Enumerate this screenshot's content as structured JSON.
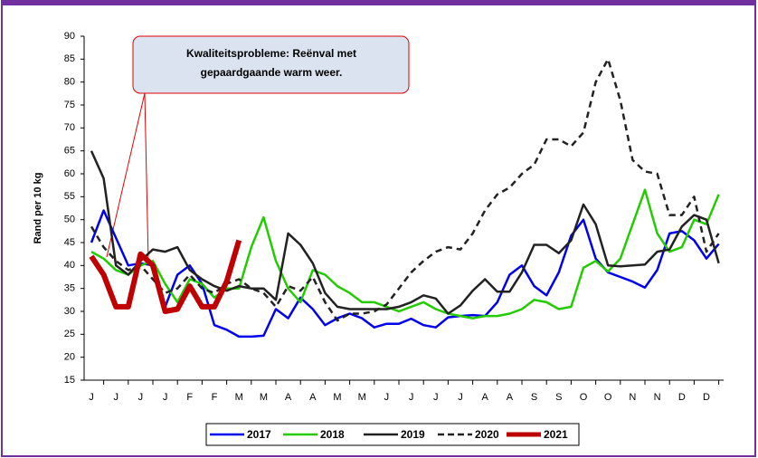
{
  "chart_data": {
    "type": "line",
    "ylabel": "Rand per 10 kg",
    "annotation": [
      "Kwaliteitsprobleme: Reënval met",
      "gepaardgaande warm weer."
    ],
    "categories": [
      "J",
      null,
      "J",
      null,
      "J",
      null,
      "J",
      null,
      "F",
      null,
      "F",
      null,
      "M",
      null,
      "M",
      null,
      "A",
      null,
      "A",
      null,
      "M",
      null,
      "M",
      null,
      "J",
      null,
      "J",
      null,
      "J",
      null,
      "J",
      null,
      "A",
      null,
      "A",
      null,
      "S",
      null,
      "S",
      null,
      "O",
      null,
      "O",
      null,
      "N",
      null,
      "N",
      null,
      "D",
      null,
      "D",
      null
    ],
    "ylim": [
      15,
      90
    ],
    "yticks": [
      15,
      20,
      25,
      30,
      35,
      40,
      45,
      50,
      55,
      60,
      65,
      70,
      75,
      80,
      85,
      90
    ],
    "grid": false,
    "legend": "bottom",
    "series": [
      {
        "name": "2017",
        "color": "#0000ee",
        "line_width": 2.5,
        "dashed": false,
        "values": [
          45,
          52,
          46,
          40,
          40.5,
          40,
          31,
          38,
          40,
          36,
          27,
          26,
          24.5,
          24.5,
          24.7,
          30.5,
          28.5,
          33,
          30.5,
          27,
          28.5,
          29.5,
          28.5,
          26.5,
          27.3,
          27.3,
          28.4,
          27,
          26.5,
          28.7,
          29,
          29.2,
          29,
          32,
          38,
          40,
          35.5,
          33.5,
          38.5,
          46.5,
          50,
          41.5,
          38.5,
          37.5,
          36.5,
          35.2,
          39,
          47,
          47.5,
          45.5,
          41.5,
          44.7
        ]
      },
      {
        "name": "2018",
        "color": "#22cc00",
        "line_width": 2.5,
        "dashed": false,
        "values": [
          43,
          41.5,
          39,
          38,
          40,
          41,
          36,
          32,
          37,
          36,
          33,
          35,
          35,
          44,
          50.5,
          41,
          35,
          32,
          39,
          38,
          35.5,
          34,
          32,
          32,
          31,
          30,
          31,
          32,
          30.5,
          29.5,
          29,
          28.5,
          29,
          29,
          29.5,
          30.5,
          32.5,
          32,
          30.5,
          31,
          39.5,
          41,
          38.7,
          41.5,
          49,
          56.5,
          47,
          43,
          44,
          50,
          49,
          55.5
        ]
      },
      {
        "name": "2019",
        "color": "#222222",
        "line_width": 2.5,
        "dashed": false,
        "values": [
          65,
          59,
          40,
          38,
          41,
          43.5,
          43,
          44,
          39,
          37,
          35.5,
          34.5,
          35.5,
          35,
          35,
          32.5,
          47,
          44.5,
          40.5,
          34,
          31,
          30.5,
          30.5,
          30.5,
          30.5,
          31,
          32,
          33.5,
          32.8,
          29.5,
          31.3,
          34.5,
          37,
          34.3,
          34.3,
          38.5,
          44.5,
          44.5,
          42.7,
          45.5,
          53.3,
          49,
          40,
          39.8,
          40,
          40.2,
          43,
          43.5,
          48.5,
          51,
          50,
          40.5
        ]
      },
      {
        "name": "2020",
        "color": "#222222",
        "line_width": 2.5,
        "dashed": true,
        "values": [
          48.5,
          44,
          41,
          39,
          40,
          37,
          34,
          35,
          38,
          35,
          34,
          36,
          37,
          35,
          34,
          31,
          35.5,
          34.5,
          37.5,
          32,
          28,
          29.5,
          29.5,
          30,
          31.5,
          35,
          38.5,
          41,
          43,
          44,
          43.5,
          47,
          52,
          55.5,
          57,
          60,
          62,
          67.5,
          67.5,
          66,
          69,
          80,
          85,
          76,
          63,
          60.5,
          60,
          51,
          51,
          55,
          43,
          47
        ]
      },
      {
        "name": "2021",
        "color": "#c00000",
        "line_width": 6,
        "dashed": false,
        "values": [
          42,
          38,
          31,
          31,
          42.5,
          40,
          30,
          30.5,
          35.5,
          31,
          31,
          36.5,
          45.5,
          null,
          null,
          null,
          null,
          null,
          null,
          null,
          null,
          null,
          null,
          null,
          null,
          null,
          null,
          null,
          null,
          null,
          null,
          null,
          null,
          null,
          null,
          null,
          null,
          null,
          null,
          null,
          null,
          null,
          null,
          null,
          null,
          null,
          null,
          null,
          null,
          null,
          null,
          null
        ]
      }
    ]
  }
}
